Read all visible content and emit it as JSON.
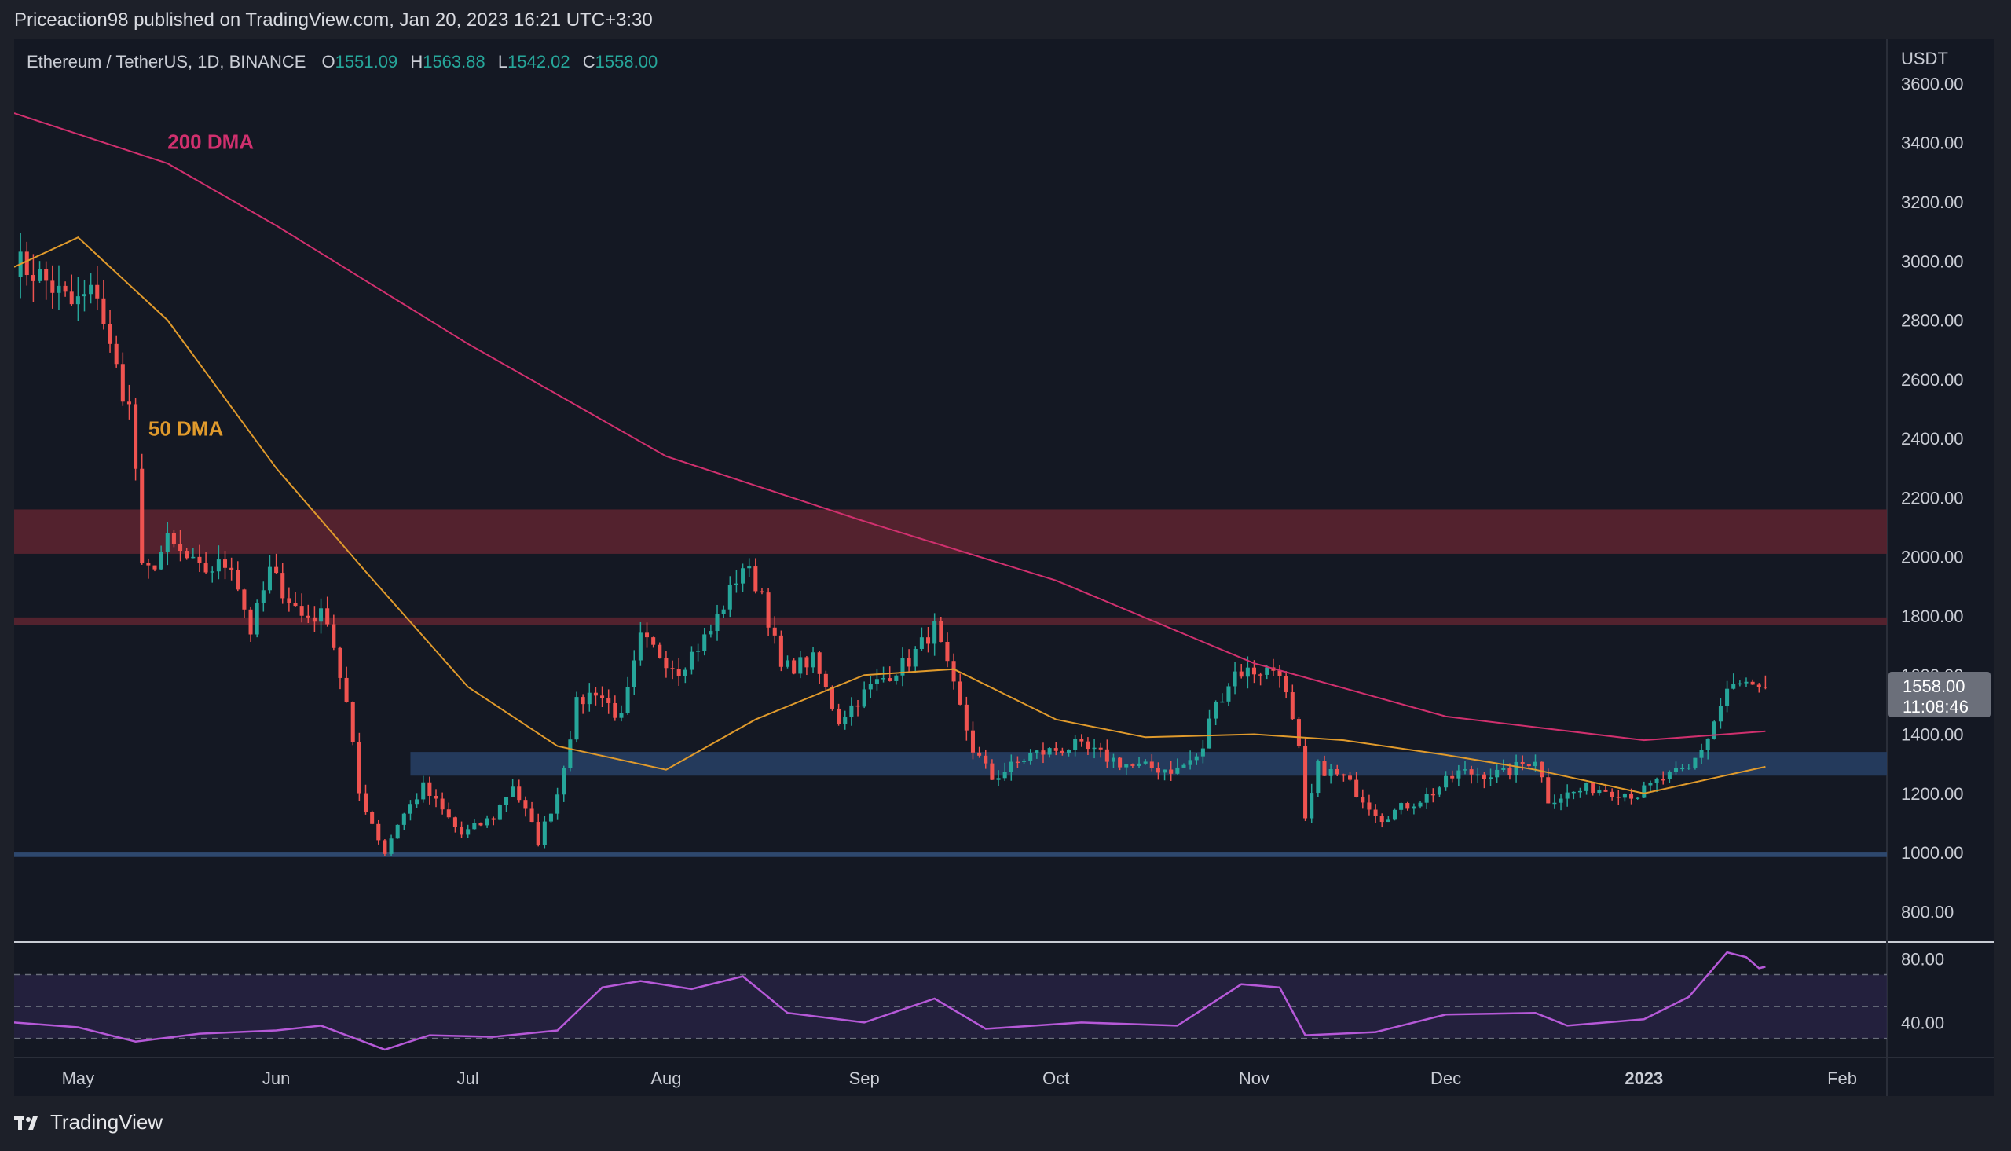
{
  "publisher": "Priceaction98 published on TradingView.com, Jan 20, 2023 16:21 UTC+3:30",
  "footer": {
    "brand": "TradingView",
    "logo_icon": "tradingview-logo-icon"
  },
  "legend": {
    "symbol": "Ethereum / TetherUS, 1D, BINANCE",
    "open_label": "O",
    "open": "1551.09",
    "high_label": "H",
    "high": "1563.88",
    "low_label": "L",
    "low": "1542.02",
    "close_label": "C",
    "close": "1558.00"
  },
  "colors": {
    "background": "#141823",
    "up": "#26a69a",
    "down": "#ef5350",
    "ma200": "#d0306e",
    "ma50": "#e09a2c",
    "rsi": "#b659d8",
    "resistance_zone": "#5a2430",
    "support_zone": "#253c60",
    "support_line": "#2f4b73"
  },
  "chart_data": [
    {
      "type": "candlestick",
      "title": "Ethereum / TetherUS, 1D, BINANCE",
      "y_unit": "USDT",
      "ylim": [
        700,
        3750
      ],
      "yticks": [
        "3600.00",
        "3400.00",
        "3200.00",
        "3000.00",
        "2800.00",
        "2600.00",
        "2400.00",
        "2200.00",
        "2000.00",
        "1800.00",
        "1600.00",
        "1400.00",
        "1200.00",
        "1000.00",
        "800.00"
      ],
      "x_range": [
        "2022-04-21",
        "2023-02-08"
      ],
      "x_ticks": [
        {
          "label": "May",
          "date": "2022-05-01"
        },
        {
          "label": "Jun",
          "date": "2022-06-01"
        },
        {
          "label": "Jul",
          "date": "2022-07-01"
        },
        {
          "label": "Aug",
          "date": "2022-08-01"
        },
        {
          "label": "Sep",
          "date": "2022-09-01"
        },
        {
          "label": "Oct",
          "date": "2022-10-01"
        },
        {
          "label": "Nov",
          "date": "2022-11-01"
        },
        {
          "label": "Dec",
          "date": "2022-12-01"
        },
        {
          "label": "2023",
          "date": "2023-01-01",
          "bold": true
        },
        {
          "label": "Feb",
          "date": "2023-02-01"
        }
      ],
      "last_price": {
        "price": 1558.0,
        "label": "1558.00",
        "countdown": "11:08:46"
      },
      "close_series": [
        {
          "date": "2022-04-21",
          "close": 3000
        },
        {
          "date": "2022-04-25",
          "close": 2950
        },
        {
          "date": "2022-04-30",
          "close": 2850
        },
        {
          "date": "2022-05-04",
          "close": 2900
        },
        {
          "date": "2022-05-06",
          "close": 2700
        },
        {
          "date": "2022-05-09",
          "close": 2500
        },
        {
          "date": "2022-05-10",
          "close": 2300
        },
        {
          "date": "2022-05-11",
          "close": 1950
        },
        {
          "date": "2022-05-12",
          "close": 1950
        },
        {
          "date": "2022-05-15",
          "close": 2050
        },
        {
          "date": "2022-05-20",
          "close": 1950
        },
        {
          "date": "2022-05-25",
          "close": 1980
        },
        {
          "date": "2022-05-28",
          "close": 1750
        },
        {
          "date": "2022-05-31",
          "close": 1950
        },
        {
          "date": "2022-06-05",
          "close": 1800
        },
        {
          "date": "2022-06-09",
          "close": 1800
        },
        {
          "date": "2022-06-12",
          "close": 1500
        },
        {
          "date": "2022-06-14",
          "close": 1200
        },
        {
          "date": "2022-06-16",
          "close": 1100
        },
        {
          "date": "2022-06-18",
          "close": 1000
        },
        {
          "date": "2022-06-20",
          "close": 1100
        },
        {
          "date": "2022-06-24",
          "close": 1220
        },
        {
          "date": "2022-06-30",
          "close": 1060
        },
        {
          "date": "2022-07-05",
          "close": 1120
        },
        {
          "date": "2022-07-08",
          "close": 1230
        },
        {
          "date": "2022-07-12",
          "close": 1040
        },
        {
          "date": "2022-07-15",
          "close": 1200
        },
        {
          "date": "2022-07-18",
          "close": 1500
        },
        {
          "date": "2022-07-21",
          "close": 1550
        },
        {
          "date": "2022-07-25",
          "close": 1450
        },
        {
          "date": "2022-07-28",
          "close": 1720
        },
        {
          "date": "2022-08-03",
          "close": 1620
        },
        {
          "date": "2022-08-08",
          "close": 1750
        },
        {
          "date": "2022-08-13",
          "close": 1970
        },
        {
          "date": "2022-08-16",
          "close": 1880
        },
        {
          "date": "2022-08-19",
          "close": 1620
        },
        {
          "date": "2022-08-24",
          "close": 1650
        },
        {
          "date": "2022-08-28",
          "close": 1450
        },
        {
          "date": "2022-09-02",
          "close": 1560
        },
        {
          "date": "2022-09-08",
          "close": 1650
        },
        {
          "date": "2022-09-12",
          "close": 1760
        },
        {
          "date": "2022-09-14",
          "close": 1620
        },
        {
          "date": "2022-09-18",
          "close": 1350
        },
        {
          "date": "2022-09-21",
          "close": 1250
        },
        {
          "date": "2022-09-27",
          "close": 1330
        },
        {
          "date": "2022-10-04",
          "close": 1360
        },
        {
          "date": "2022-10-13",
          "close": 1290
        },
        {
          "date": "2022-10-20",
          "close": 1280
        },
        {
          "date": "2022-10-24",
          "close": 1340
        },
        {
          "date": "2022-10-25",
          "close": 1460
        },
        {
          "date": "2022-10-29",
          "close": 1610
        },
        {
          "date": "2022-11-05",
          "close": 1620
        },
        {
          "date": "2022-11-08",
          "close": 1340
        },
        {
          "date": "2022-11-09",
          "close": 1100
        },
        {
          "date": "2022-11-11",
          "close": 1290
        },
        {
          "date": "2022-11-15",
          "close": 1250
        },
        {
          "date": "2022-11-21",
          "close": 1120
        },
        {
          "date": "2022-11-28",
          "close": 1190
        },
        {
          "date": "2022-12-03",
          "close": 1270
        },
        {
          "date": "2022-12-10",
          "close": 1265
        },
        {
          "date": "2022-12-15",
          "close": 1320
        },
        {
          "date": "2022-12-17",
          "close": 1180
        },
        {
          "date": "2022-12-24",
          "close": 1220
        },
        {
          "date": "2022-12-31",
          "close": 1196
        },
        {
          "date": "2023-01-04",
          "close": 1250
        },
        {
          "date": "2023-01-08",
          "close": 1280
        },
        {
          "date": "2023-01-11",
          "close": 1390
        },
        {
          "date": "2023-01-14",
          "close": 1550
        },
        {
          "date": "2023-01-17",
          "close": 1570
        },
        {
          "date": "2023-01-19",
          "close": 1540
        },
        {
          "date": "2023-01-20",
          "close": 1558
        }
      ],
      "moving_averages": [
        {
          "name": "200 DMA",
          "color": "#d0306e",
          "points": [
            {
              "date": "2022-04-21",
              "value": 3500
            },
            {
              "date": "2022-05-15",
              "value": 3330
            },
            {
              "date": "2022-06-01",
              "value": 3120
            },
            {
              "date": "2022-07-01",
              "value": 2720
            },
            {
              "date": "2022-08-01",
              "value": 2340
            },
            {
              "date": "2022-09-01",
              "value": 2120
            },
            {
              "date": "2022-10-01",
              "value": 1920
            },
            {
              "date": "2022-11-01",
              "value": 1640
            },
            {
              "date": "2022-12-01",
              "value": 1460
            },
            {
              "date": "2023-01-01",
              "value": 1380
            },
            {
              "date": "2023-01-20",
              "value": 1410
            }
          ]
        },
        {
          "name": "50 DMA",
          "color": "#e09a2c",
          "points": [
            {
              "date": "2022-04-21",
              "value": 2980
            },
            {
              "date": "2022-05-01",
              "value": 3080
            },
            {
              "date": "2022-05-15",
              "value": 2800
            },
            {
              "date": "2022-06-01",
              "value": 2300
            },
            {
              "date": "2022-06-15",
              "value": 1950
            },
            {
              "date": "2022-07-01",
              "value": 1560
            },
            {
              "date": "2022-07-15",
              "value": 1360
            },
            {
              "date": "2022-08-01",
              "value": 1280
            },
            {
              "date": "2022-08-15",
              "value": 1450
            },
            {
              "date": "2022-09-01",
              "value": 1600
            },
            {
              "date": "2022-09-15",
              "value": 1620
            },
            {
              "date": "2022-10-01",
              "value": 1450
            },
            {
              "date": "2022-10-15",
              "value": 1390
            },
            {
              "date": "2022-11-01",
              "value": 1400
            },
            {
              "date": "2022-11-15",
              "value": 1380
            },
            {
              "date": "2022-12-01",
              "value": 1330
            },
            {
              "date": "2022-12-15",
              "value": 1280
            },
            {
              "date": "2023-01-01",
              "value": 1200
            },
            {
              "date": "2023-01-20",
              "value": 1290
            }
          ]
        }
      ],
      "annotations": [
        {
          "text": "200 DMA",
          "color": "#d0306e",
          "date": "2022-05-15",
          "price": 3380
        },
        {
          "text": "50 DMA",
          "color": "#e09a2c",
          "date": "2022-05-12",
          "price": 2410
        }
      ],
      "zones": [
        {
          "kind": "resistance",
          "from_price": 2010,
          "to_price": 2160,
          "start": "2022-04-21",
          "end": "2023-02-08",
          "color": "#5a2430"
        },
        {
          "kind": "resistance",
          "from_price": 1770,
          "to_price": 1795,
          "start": "2022-04-21",
          "end": "2023-02-08",
          "color": "#5a2430"
        },
        {
          "kind": "support",
          "from_price": 1260,
          "to_price": 1340,
          "start": "2022-06-22",
          "end": "2023-02-08",
          "color": "#253c60"
        },
        {
          "kind": "support",
          "from_price": 985,
          "to_price": 1000,
          "start": "2022-04-21",
          "end": "2023-02-08",
          "color": "#2f4b73"
        }
      ]
    },
    {
      "type": "line",
      "title": "RSI",
      "ylim": [
        18,
        90
      ],
      "yticks": [
        "80.00",
        "40.00"
      ],
      "bands": [
        70,
        50,
        30
      ],
      "series": [
        {
          "color": "#b659d8",
          "points": [
            {
              "date": "2022-04-21",
              "value": 40
            },
            {
              "date": "2022-05-01",
              "value": 37
            },
            {
              "date": "2022-05-10",
              "value": 28
            },
            {
              "date": "2022-05-20",
              "value": 33
            },
            {
              "date": "2022-06-01",
              "value": 35
            },
            {
              "date": "2022-06-08",
              "value": 38
            },
            {
              "date": "2022-06-18",
              "value": 23
            },
            {
              "date": "2022-06-25",
              "value": 32
            },
            {
              "date": "2022-07-05",
              "value": 31
            },
            {
              "date": "2022-07-15",
              "value": 35
            },
            {
              "date": "2022-07-22",
              "value": 62
            },
            {
              "date": "2022-07-28",
              "value": 66
            },
            {
              "date": "2022-08-05",
              "value": 61
            },
            {
              "date": "2022-08-13",
              "value": 69
            },
            {
              "date": "2022-08-20",
              "value": 46
            },
            {
              "date": "2022-09-01",
              "value": 40
            },
            {
              "date": "2022-09-12",
              "value": 55
            },
            {
              "date": "2022-09-20",
              "value": 36
            },
            {
              "date": "2022-10-05",
              "value": 40
            },
            {
              "date": "2022-10-20",
              "value": 38
            },
            {
              "date": "2022-10-30",
              "value": 64
            },
            {
              "date": "2022-11-05",
              "value": 62
            },
            {
              "date": "2022-11-09",
              "value": 32
            },
            {
              "date": "2022-11-20",
              "value": 34
            },
            {
              "date": "2022-12-01",
              "value": 45
            },
            {
              "date": "2022-12-15",
              "value": 46
            },
            {
              "date": "2022-12-20",
              "value": 38
            },
            {
              "date": "2023-01-01",
              "value": 42
            },
            {
              "date": "2023-01-08",
              "value": 56
            },
            {
              "date": "2023-01-14",
              "value": 84
            },
            {
              "date": "2023-01-17",
              "value": 81
            },
            {
              "date": "2023-01-19",
              "value": 74
            },
            {
              "date": "2023-01-20",
              "value": 75
            }
          ]
        }
      ]
    }
  ]
}
